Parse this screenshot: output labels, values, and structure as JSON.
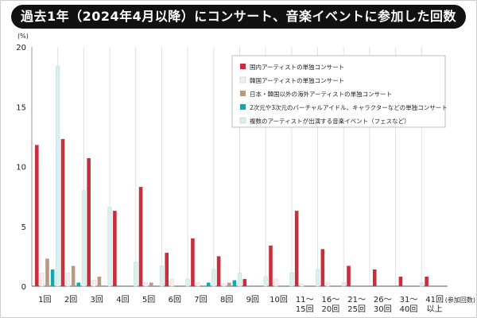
{
  "title": "過去1年（2024年4月以降）にコンサート、音楽イベントに参加した回数",
  "colors": {
    "domestic": "#c62f3e",
    "korean": "#f8ecec",
    "overseas": "#b39b86",
    "virtual": "#13a7b0",
    "festival": "#dcefef"
  },
  "chart_data": {
    "type": "bar",
    "ylabel": "(%)",
    "xlabel": "(参加回数)",
    "ylim": [
      0,
      20
    ],
    "yticks": [
      "0",
      "5",
      "10",
      "15",
      "20"
    ],
    "grid": "vertical lines between categories",
    "legend_position": "top-right",
    "categories": [
      [
        "1回"
      ],
      [
        "2回"
      ],
      [
        "3回"
      ],
      [
        "4回"
      ],
      [
        "5回"
      ],
      [
        "6回"
      ],
      [
        "7回"
      ],
      [
        "8回"
      ],
      [
        "9回"
      ],
      [
        "10回"
      ],
      [
        "11～",
        "15回"
      ],
      [
        "16～",
        "20回"
      ],
      [
        "21～",
        "25回"
      ],
      [
        "26～",
        "30回"
      ],
      [
        "31～",
        "40回"
      ],
      [
        "41回",
        "以上"
      ]
    ],
    "series": [
      {
        "name": "国内アーティストの単独コンサート",
        "color_key": "domestic",
        "values": [
          11.8,
          12.3,
          10.7,
          6.3,
          8.3,
          2.8,
          4.0,
          2.5,
          0.6,
          3.4,
          6.3,
          3.1,
          1.7,
          1.4,
          0.8,
          0.8
        ]
      },
      {
        "name": "韓国アーティストの単独コンサート",
        "color_key": "korean",
        "values": [
          1.1,
          1.1,
          0.5,
          0.0,
          0.3,
          0.6,
          0.3,
          0.2,
          0.0,
          0.6,
          0.2,
          0.3,
          0.0,
          0.0,
          0.0,
          0.0
        ]
      },
      {
        "name": "日本・韓国以外の海外アーティストの単独コンサート",
        "color_key": "overseas",
        "values": [
          2.3,
          1.7,
          0.8,
          0.0,
          0.3,
          0.0,
          0.0,
          0.3,
          0.0,
          0.0,
          0.0,
          0.0,
          0.0,
          0.0,
          0.0,
          0.0
        ]
      },
      {
        "name": "2次元や3次元のバーチャルアイドル、キャラクターなどの単独コンサート",
        "color_key": "virtual",
        "values": [
          1.4,
          0.3,
          0.0,
          0.0,
          0.0,
          0.0,
          0.3,
          0.5,
          0.0,
          0.0,
          0.0,
          0.0,
          0.0,
          0.0,
          0.0,
          0.0
        ]
      },
      {
        "name": "複数のアーティストが出演する音楽イベント（フェスなど）",
        "color_key": "festival",
        "values": [
          18.4,
          8.0,
          6.6,
          2.0,
          1.7,
          0.6,
          1.4,
          1.1,
          0.8,
          1.1,
          1.4,
          0.3,
          0.0,
          0.0,
          0.3,
          0.0
        ]
      }
    ]
  }
}
